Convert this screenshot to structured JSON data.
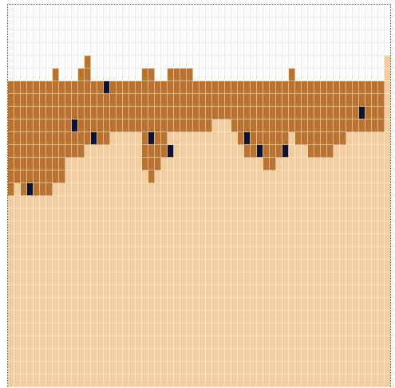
{
  "game": {
    "grid": {
      "cols": 60,
      "rows": 30
    },
    "palette": {
      "empty": "#ffffff",
      "sand": "#f2cc9e",
      "dirt": "#b87333",
      "ore": "#0d1433"
    },
    "surface_heights": [
      24,
      24,
      21,
      24,
      24,
      24,
      24,
      23,
      24,
      24,
      24,
      25,
      25,
      24,
      24,
      25,
      24,
      24,
      24,
      24,
      21,
      24,
      24,
      25,
      24,
      25,
      24,
      24,
      24,
      24,
      24,
      24,
      24,
      24,
      24,
      24,
      24,
      24,
      24,
      24,
      24,
      24,
      24,
      24,
      24,
      24,
      24,
      24,
      24,
      24,
      24,
      24,
      24,
      24,
      24,
      24,
      24,
      24,
      24,
      26
    ],
    "sand_tops": [
      18,
      18,
      18,
      18,
      15,
      17,
      18,
      17,
      19,
      19,
      19,
      19,
      19,
      19,
      20,
      19,
      19,
      19,
      18,
      17,
      19,
      20,
      18,
      17,
      17,
      17,
      17,
      18,
      18,
      18,
      17,
      17,
      17,
      17,
      17,
      19,
      19,
      19,
      19,
      19,
      19,
      19,
      19,
      19,
      19,
      19,
      19,
      19,
      19,
      18,
      18,
      18,
      18,
      18,
      18,
      18,
      18,
      18,
      18,
      26
    ],
    "dirt_columns": [
      {
        "col": 0,
        "top": 24,
        "bottom": 14
      },
      {
        "col": 1,
        "top": 24,
        "bottom": 14
      },
      {
        "col": 2,
        "top": 24,
        "bottom": 14
      },
      {
        "col": 3,
        "top": 24,
        "bottom": 15
      },
      {
        "col": 4,
        "top": 24,
        "bottom": 15
      },
      {
        "col": 5,
        "top": 24,
        "bottom": 15
      },
      {
        "col": 6,
        "top": 24,
        "bottom": 16
      },
      {
        "col": 7,
        "top": 24,
        "bottom": 16
      },
      {
        "col": 8,
        "top": 24,
        "bottom": 17
      },
      {
        "col": 9,
        "top": 24,
        "bottom": 17
      },
      {
        "col": 10,
        "top": 25,
        "bottom": 18
      },
      {
        "col": 11,
        "top": 25,
        "bottom": 19
      },
      {
        "col": 12,
        "top": 26,
        "bottom": 19
      },
      {
        "col": 13,
        "top": 25,
        "bottom": 19
      },
      {
        "col": 14,
        "top": 24,
        "bottom": 19
      },
      {
        "col": 15,
        "top": 24,
        "bottom": 20
      },
      {
        "col": 16,
        "top": 24,
        "bottom": 20
      },
      {
        "col": 17,
        "top": 24,
        "bottom": 19
      },
      {
        "col": 18,
        "top": 24,
        "bottom": 19
      },
      {
        "col": 19,
        "top": 24,
        "bottom": 20
      },
      {
        "col": 20,
        "top": 25,
        "bottom": 21
      },
      {
        "col": 21,
        "top": 24,
        "bottom": 21
      },
      {
        "col": 22,
        "top": 24,
        "bottom": 20
      },
      {
        "col": 23,
        "top": 26,
        "bottom": 19
      },
      {
        "col": 24,
        "top": 25,
        "bottom": 18
      },
      {
        "col": 25,
        "top": 25,
        "bottom": 17
      },
      {
        "col": 26,
        "top": 25,
        "bottom": 17
      },
      {
        "col": 27,
        "top": 26,
        "bottom": 17
      },
      {
        "col": 28,
        "top": 25,
        "bottom": 18
      },
      {
        "col": 29,
        "top": 25,
        "bottom": 18
      }
    ],
    "ore_cells": [
      {
        "col": 3,
        "row": 14
      },
      {
        "col": 10,
        "row": 9
      },
      {
        "col": 13,
        "row": 10
      },
      {
        "col": 15,
        "row": 6
      },
      {
        "col": 22,
        "row": 10
      },
      {
        "col": 25,
        "row": 11
      },
      {
        "col": 37,
        "row": 10
      },
      {
        "col": 39,
        "row": 11
      },
      {
        "col": 43,
        "row": 11
      },
      {
        "col": 55,
        "row": 8
      }
    ]
  }
}
